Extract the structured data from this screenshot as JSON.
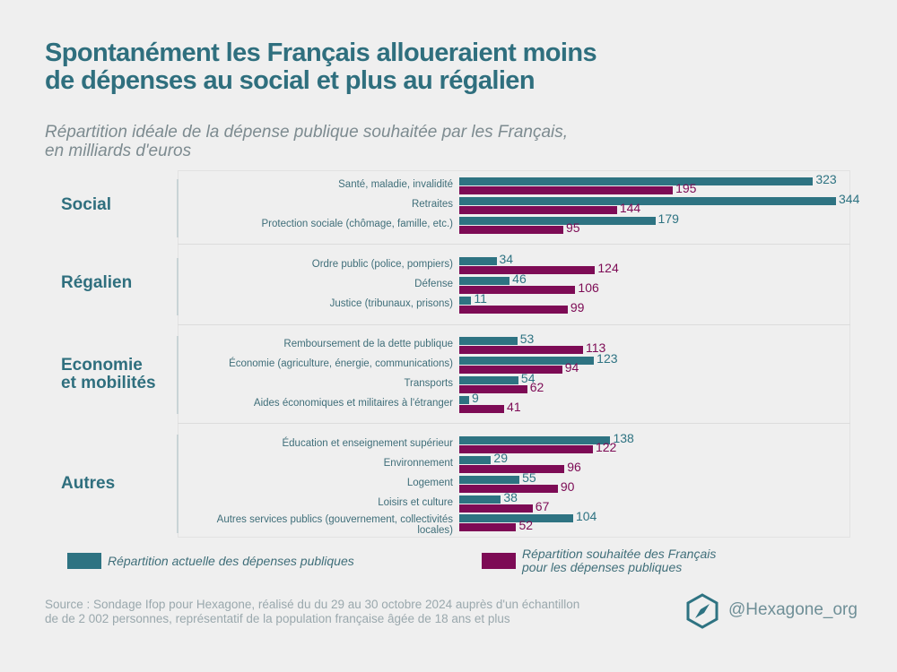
{
  "title": [
    "Spontanément les Français alloueraient moins",
    "de dépenses au social et plus au régalien"
  ],
  "subtitle": [
    "Répartition idéale de la dépense publique souhaitée par les Français,",
    "en milliards d'euros"
  ],
  "colors": {
    "actual": "#2e7382",
    "desired": "#7d0b55",
    "title": "#2f6f7e"
  },
  "chart_data": {
    "type": "bar",
    "orientation": "horizontal",
    "groups": [
      {
        "name": "Social",
        "categories": [
          "Santé, maladie, invalidité",
          "Retraites",
          "Protection sociale (chômage, famille, etc.)"
        ],
        "actual": [
          323,
          344,
          179
        ],
        "desired": [
          195,
          144,
          95
        ]
      },
      {
        "name": "Régalien",
        "categories": [
          "Ordre public (police, pompiers)",
          "Défense",
          "Justice (tribunaux, prisons)"
        ],
        "actual": [
          34,
          46,
          11
        ],
        "desired": [
          124,
          106,
          99
        ]
      },
      {
        "name": "Economie et mobilités",
        "categories": [
          "Remboursement de la dette publique",
          "Économie (agriculture, énergie, communications)",
          "Transports",
          "Aides économiques et militaires à l'étranger"
        ],
        "actual": [
          53,
          123,
          54,
          9
        ],
        "desired": [
          113,
          94,
          62,
          41
        ]
      },
      {
        "name": "Autres",
        "categories": [
          "Éducation et enseignement supérieur",
          "Environnement",
          "Logement",
          "Loisirs et culture",
          "Autres services publics (gouvernement, collectivités locales)"
        ],
        "actual": [
          138,
          29,
          55,
          38,
          104
        ],
        "desired": [
          122,
          96,
          90,
          67,
          52
        ]
      }
    ],
    "series": [
      {
        "name": "Répartition actuelle des dépenses publiques"
      },
      {
        "name": "Répartition souhaitée des Français pour les dépenses publiques"
      }
    ]
  },
  "legend": {
    "actual": "Répartition actuelle des dépenses publiques",
    "desired": [
      "Répartition souhaitée des Français",
      "pour les dépenses publiques"
    ]
  },
  "source": [
    "Source : Sondage Ifop pour Hexagone, réalisé du du 29 au 30 octobre 2024 auprès d'un échantillon",
    "de de 2 002 personnes, représentatif de la population française âgée de 18 ans et plus"
  ],
  "handle": "@Hexagone_org",
  "logo_icon": "hexagon-compass-icon"
}
